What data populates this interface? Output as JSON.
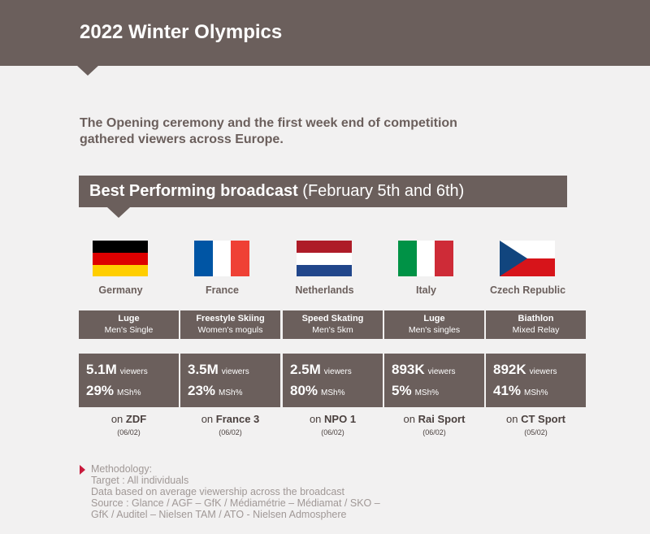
{
  "header": {
    "title": "2022 Winter Olympics"
  },
  "intro": {
    "line1": "The Opening ceremony and the first week end of competition",
    "line2": "gathered viewers across Europe."
  },
  "banner": {
    "strong": "Best Performing broadcast",
    "rest": "(February 5th and 6th)"
  },
  "columns": [
    {
      "country": "Germany",
      "flag_colors": [
        "#000000",
        "#dd0000",
        "#ffce00"
      ],
      "sport": "Luge",
      "detail": "Men's Single",
      "viewers": "5.1M",
      "viewers_label": "viewers",
      "share": "29%",
      "share_label": "MSh%",
      "on": "on",
      "channel": "ZDF",
      "date": "(06/02)"
    },
    {
      "country": "France",
      "flag_colors": [
        "#0055a4",
        "#ffffff",
        "#ef4135"
      ],
      "sport": "Freestyle Skiing",
      "detail": "Women's moguls",
      "viewers": "3.5M",
      "viewers_label": "viewers",
      "share": "23%",
      "share_label": "MSh%",
      "on": "on",
      "channel": "France 3",
      "date": "(06/02)"
    },
    {
      "country": "Netherlands",
      "flag_colors": [
        "#ae1c28",
        "#ffffff",
        "#21468b"
      ],
      "sport": "Speed Skating",
      "detail": "Men's 5km",
      "viewers": "2.5M",
      "viewers_label": "viewers",
      "share": "80%",
      "share_label": "MSh%",
      "on": "on",
      "channel": "NPO 1",
      "date": "(06/02)"
    },
    {
      "country": "Italy",
      "flag_colors": [
        "#009246",
        "#ffffff",
        "#ce2b37"
      ],
      "sport": "Luge",
      "detail": "Men's singles",
      "viewers": "893K",
      "viewers_label": "viewers",
      "share": "5%",
      "share_label": "MSh%",
      "on": "on",
      "channel": "Rai Sport",
      "date": "(06/02)"
    },
    {
      "country": "Czech Republic",
      "flag_colors": [
        "#ffffff",
        "#d7141a",
        "#11457e"
      ],
      "sport": "Biathlon",
      "detail": "Mixed Relay",
      "viewers": "892K",
      "viewers_label": "viewers",
      "share": "41%",
      "share_label": "MSh%",
      "on": "on",
      "channel": "CT Sport",
      "date": "(05/02)"
    }
  ],
  "methodology": {
    "title": "Methodology:",
    "target": "Target : All individuals",
    "basis": "Data based on average viewership across the broadcast",
    "source1": "Source : Glance / AGF – GfK / Médiamétrie – Médiamat / SKO –",
    "source2": "GfK / Auditel – Nielsen TAM / ATO - Nielsen Admosphere"
  },
  "colors": {
    "primary": "#6b5f5c",
    "background": "#f2f1f1",
    "accent": "#c81a3c",
    "muted": "#a09896"
  }
}
